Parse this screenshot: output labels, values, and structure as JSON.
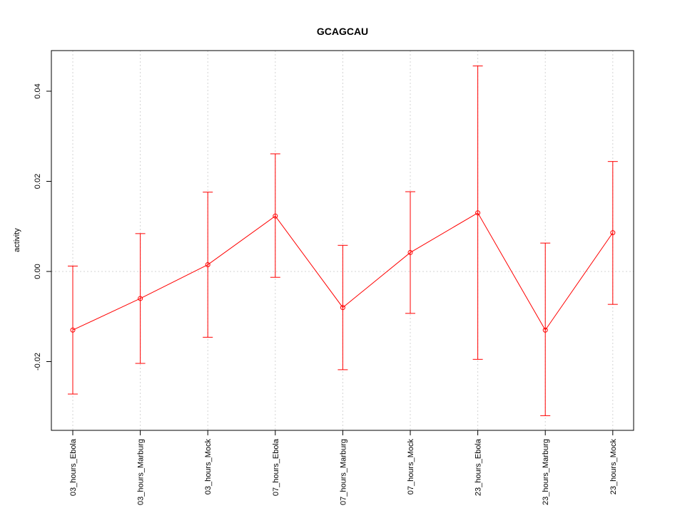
{
  "chart_data": {
    "type": "line",
    "title": "GCAGCAU",
    "xlabel": "",
    "ylabel": "activity",
    "categories": [
      "03_hours_Ebola",
      "03_hours_Marburg",
      "03_hours_Mock",
      "07_hours_Ebola",
      "07_hours_Marburg",
      "07_hours_Mock",
      "23_hours_Ebola",
      "23_hours_Marburg",
      "23_hours_Mock"
    ],
    "series": [
      {
        "values": [
          -0.013,
          -0.006,
          0.0015,
          0.0123,
          -0.008,
          0.0042,
          0.013,
          -0.013,
          0.0086
        ],
        "error_upper": [
          0.0012,
          0.0084,
          0.0176,
          0.0261,
          0.0058,
          0.0177,
          0.0456,
          0.0063,
          0.0244
        ],
        "error_lower": [
          -0.0272,
          -0.0204,
          -0.0146,
          -0.0013,
          -0.0218,
          -0.0093,
          -0.0195,
          -0.032,
          -0.0073
        ],
        "color": "#ff0000"
      }
    ],
    "ylim": [
      -0.035,
      0.049
    ],
    "yticks": [
      -0.02,
      0.0,
      0.02,
      0.04
    ],
    "ytick_labels": [
      "-0.02",
      "0.00",
      "0.02",
      "0.04"
    ],
    "grid": true,
    "legend": "none"
  }
}
